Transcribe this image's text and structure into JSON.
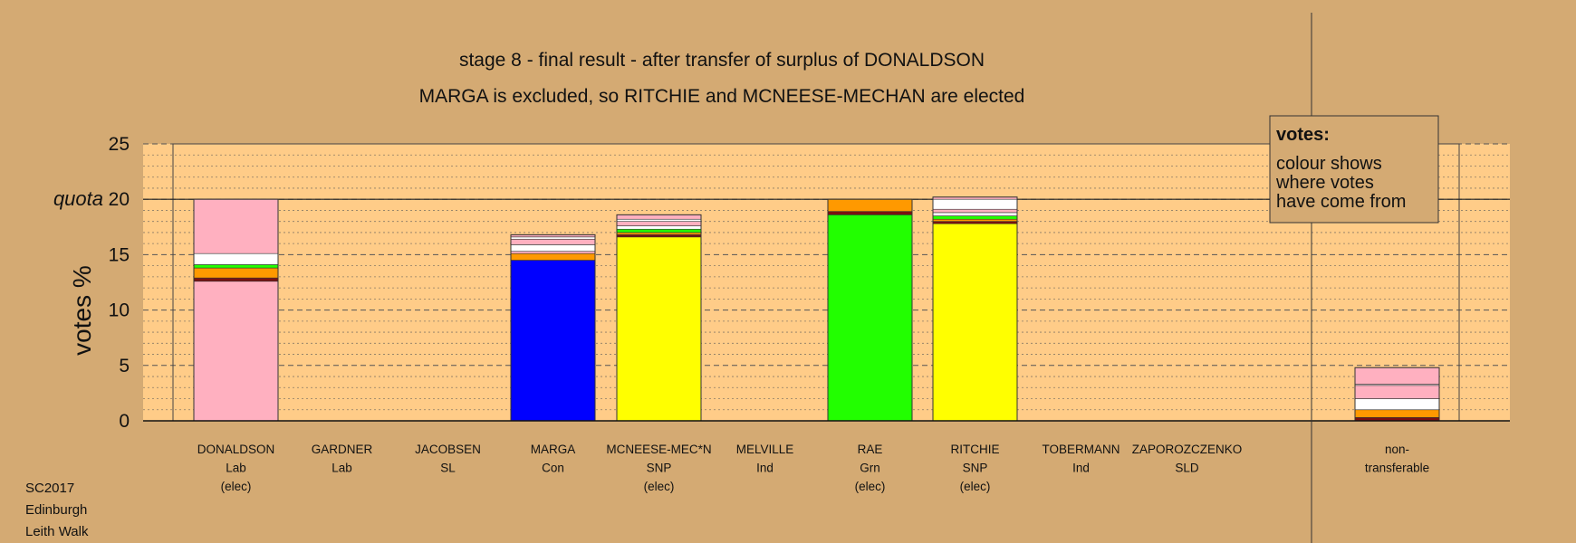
{
  "colors": {
    "background": "#d4aa73",
    "plot_area": "#ffcc88",
    "Lab": "#ffb0c0",
    "Con": "#0000ff",
    "SNP": "#ffff00",
    "Grn": "#22ff00",
    "SL": "#ffffff",
    "SLD": "#ff9900",
    "Ind": "#6b1a1a",
    "dark_red": "#7a1010",
    "white": "#ffffff",
    "orange": "#ff9900",
    "green": "#22ff00"
  },
  "footer": [
    "SC2017",
    "Edinburgh",
    "Leith Walk"
  ],
  "legend": {
    "title": "votes:",
    "lines": [
      "colour shows",
      "where votes",
      "have come from"
    ]
  },
  "chart_data": {
    "type": "bar",
    "stacked": true,
    "title": "stage 8 - final result - after transfer of surplus of DONALDSON",
    "subtitle": "MARGA is excluded, so RITCHIE and MCNEESE-MECHAN are elected",
    "ylabel": "votes %",
    "ylim": [
      0,
      25
    ],
    "yticks": [
      0,
      5,
      10,
      15,
      20,
      25
    ],
    "quota": 20,
    "quota_label": "quota",
    "grid": true,
    "legend_position": "top-right",
    "categories": [
      {
        "name": "DONALDSON",
        "party": "Lab",
        "status": "(elec)"
      },
      {
        "name": "GARDNER",
        "party": "Lab",
        "status": ""
      },
      {
        "name": "JACOBSEN",
        "party": "SL",
        "status": ""
      },
      {
        "name": "MARGA",
        "party": "Con",
        "status": ""
      },
      {
        "name": "MCNEESE-MEC*N",
        "party": "SNP",
        "status": "(elec)"
      },
      {
        "name": "MELVILLE",
        "party": "Ind",
        "status": ""
      },
      {
        "name": "RAE",
        "party": "Grn",
        "status": "(elec)"
      },
      {
        "name": "RITCHIE",
        "party": "SNP",
        "status": "(elec)"
      },
      {
        "name": "TOBERMANN",
        "party": "Ind",
        "status": ""
      },
      {
        "name": "ZAPOROZCZENKO",
        "party": "SLD",
        "status": ""
      }
    ],
    "nontransferable": {
      "line1": "non-",
      "line2": "transferable"
    },
    "bars": [
      {
        "candidate": "DONALDSON",
        "segments": [
          {
            "color": "Lab",
            "value": 12.6
          },
          {
            "color": "dark_red",
            "value": 0.3
          },
          {
            "color": "orange",
            "value": 0.9
          },
          {
            "color": "green",
            "value": 0.3
          },
          {
            "color": "white",
            "value": 1.0
          },
          {
            "color": "Lab",
            "value": 4.9
          }
        ]
      },
      {
        "candidate": "GARDNER",
        "segments": []
      },
      {
        "candidate": "JACOBSEN",
        "segments": []
      },
      {
        "candidate": "MARGA",
        "segments": [
          {
            "color": "Con",
            "value": 14.5
          },
          {
            "color": "orange",
            "value": 0.6
          },
          {
            "color": "Lab",
            "value": 0.2
          },
          {
            "color": "white",
            "value": 0.6
          },
          {
            "color": "Lab",
            "value": 0.5
          },
          {
            "color": "white",
            "value": 0.2
          },
          {
            "color": "Lab",
            "value": 0.2
          }
        ]
      },
      {
        "candidate": "MCNEESE-MECHAN",
        "segments": [
          {
            "color": "SNP",
            "value": 16.6
          },
          {
            "color": "dark_red",
            "value": 0.2
          },
          {
            "color": "orange",
            "value": 0.2
          },
          {
            "color": "green",
            "value": 0.3
          },
          {
            "color": "white",
            "value": 0.3
          },
          {
            "color": "Lab",
            "value": 0.4
          },
          {
            "color": "white",
            "value": 0.2
          },
          {
            "color": "Lab",
            "value": 0.4
          }
        ]
      },
      {
        "candidate": "MELVILLE",
        "segments": []
      },
      {
        "candidate": "RAE",
        "segments": [
          {
            "color": "Grn",
            "value": 18.6
          },
          {
            "color": "dark_red",
            "value": 0.3
          },
          {
            "color": "orange",
            "value": 1.1
          }
        ]
      },
      {
        "candidate": "RITCHIE",
        "segments": [
          {
            "color": "SNP",
            "value": 17.8
          },
          {
            "color": "dark_red",
            "value": 0.2
          },
          {
            "color": "orange",
            "value": 0.2
          },
          {
            "color": "green",
            "value": 0.3
          },
          {
            "color": "white",
            "value": 0.3
          },
          {
            "color": "Lab",
            "value": 0.3
          },
          {
            "color": "white",
            "value": 0.9
          },
          {
            "color": "Lab",
            "value": 0.2
          }
        ]
      },
      {
        "candidate": "TOBERMANN",
        "segments": []
      },
      {
        "candidate": "ZAPOROZCZENKO",
        "segments": []
      },
      {
        "candidate": "non-transferable",
        "segments": [
          {
            "color": "dark_red",
            "value": 0.3
          },
          {
            "color": "orange",
            "value": 0.7
          },
          {
            "color": "white",
            "value": 1.0
          },
          {
            "color": "Lab",
            "value": 1.2
          },
          {
            "color": "white",
            "value": 0.1
          },
          {
            "color": "Lab",
            "value": 1.5
          }
        ]
      }
    ]
  }
}
